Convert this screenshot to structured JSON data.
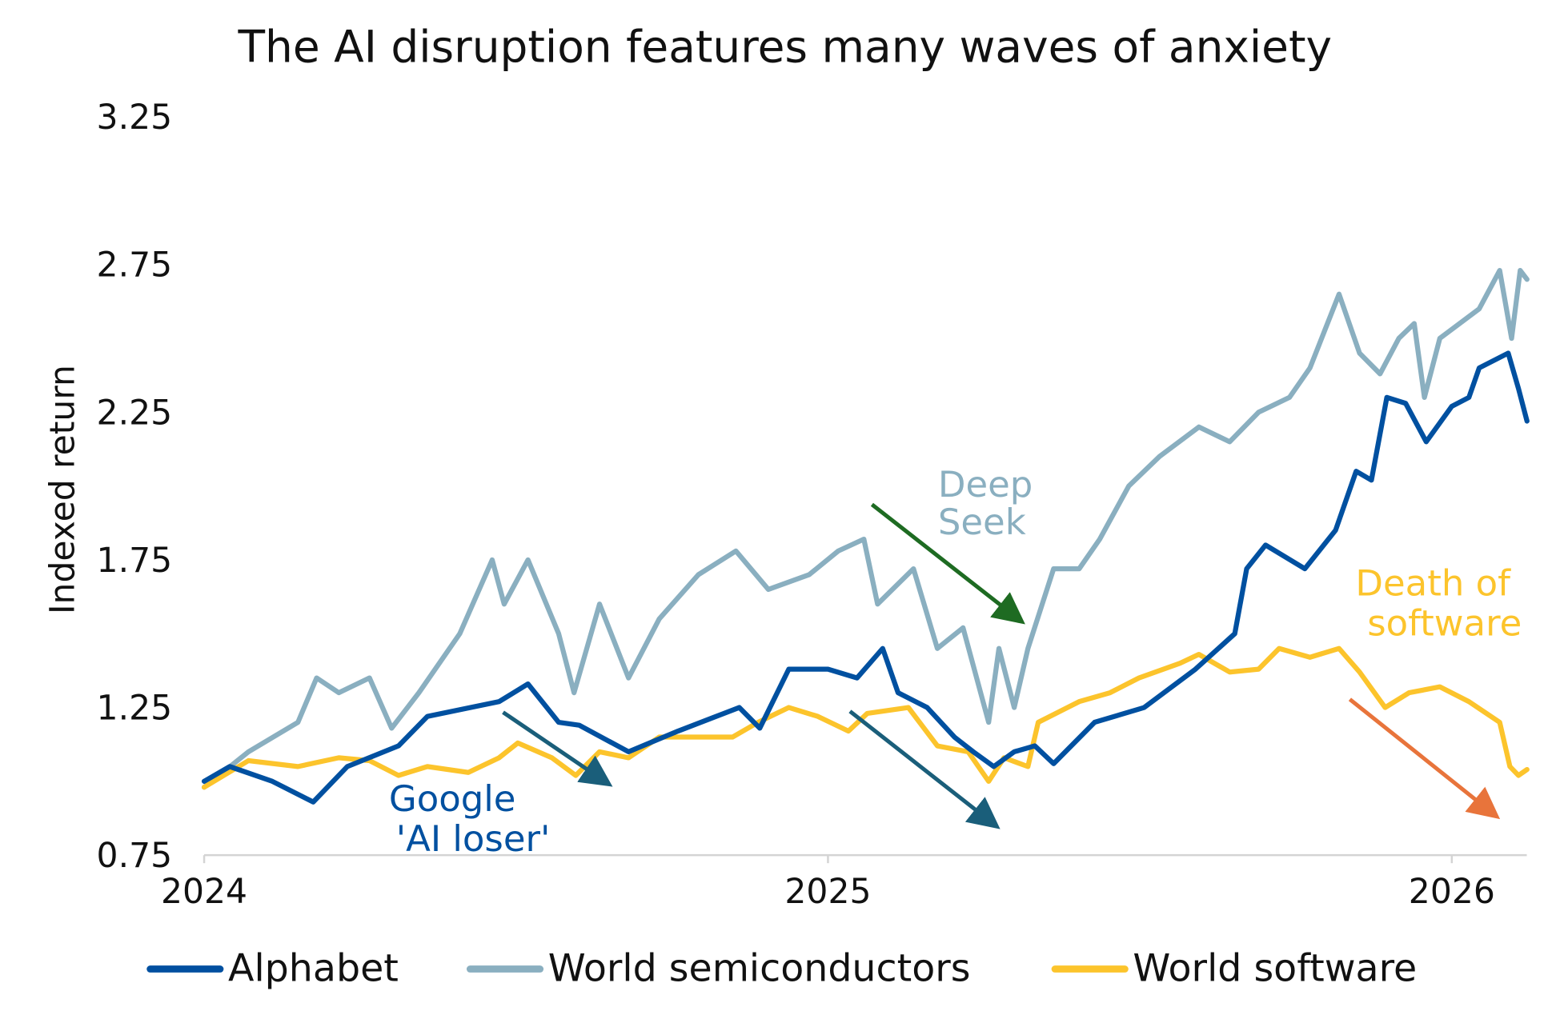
{
  "chart_data": {
    "type": "line",
    "title": "The AI disruption features many waves of anxiety",
    "xlabel": "",
    "ylabel": "Indexed return",
    "ylim": [
      0.75,
      3.25
    ],
    "yticks": [
      "0.75",
      "1.25",
      "1.75",
      "2.25",
      "2.75",
      "3.25"
    ],
    "xlim": [
      "2024-01-01",
      "2026-02-14"
    ],
    "xticks": [
      "2024",
      "2025",
      "2026"
    ],
    "grid": false,
    "legend": "bottom",
    "series": [
      {
        "name": "Alphabet",
        "color": "#0050a0",
        "points": [
          [
            "2024-01-01",
            1.0
          ],
          [
            "2024-01-16",
            1.05
          ],
          [
            "2024-02-10",
            1.0
          ],
          [
            "2024-03-05",
            0.93
          ],
          [
            "2024-03-25",
            1.05
          ],
          [
            "2024-04-24",
            1.12
          ],
          [
            "2024-05-11",
            1.22
          ],
          [
            "2024-06-22",
            1.27
          ],
          [
            "2024-07-09",
            1.33
          ],
          [
            "2024-07-27",
            1.2
          ],
          [
            "2024-08-08",
            1.19
          ],
          [
            "2024-09-06",
            1.1
          ],
          [
            "2024-10-05",
            1.17
          ],
          [
            "2024-11-10",
            1.25
          ],
          [
            "2024-11-22",
            1.18
          ],
          [
            "2024-12-09",
            1.38
          ],
          [
            "2025-01-01",
            1.38
          ],
          [
            "2025-01-18",
            1.35
          ],
          [
            "2025-02-02",
            1.45
          ],
          [
            "2025-02-11",
            1.3
          ],
          [
            "2025-02-28",
            1.25
          ],
          [
            "2025-03-16",
            1.15
          ],
          [
            "2025-03-27",
            1.1
          ],
          [
            "2025-04-08",
            1.05
          ],
          [
            "2025-04-20",
            1.1
          ],
          [
            "2025-05-02",
            1.12
          ],
          [
            "2025-05-13",
            1.06
          ],
          [
            "2025-06-06",
            1.2
          ],
          [
            "2025-07-05",
            1.25
          ],
          [
            "2025-08-04",
            1.38
          ],
          [
            "2025-08-27",
            1.5
          ],
          [
            "2025-09-03",
            1.72
          ],
          [
            "2025-09-14",
            1.8
          ],
          [
            "2025-10-07",
            1.72
          ],
          [
            "2025-10-25",
            1.85
          ],
          [
            "2025-11-06",
            2.05
          ],
          [
            "2025-11-15",
            2.02
          ],
          [
            "2025-11-24",
            2.3
          ],
          [
            "2025-12-05",
            2.28
          ],
          [
            "2025-12-17",
            2.15
          ],
          [
            "2026-01-01",
            2.27
          ],
          [
            "2026-01-11",
            2.3
          ],
          [
            "2026-01-17",
            2.4
          ],
          [
            "2026-02-03",
            2.45
          ],
          [
            "2026-02-09",
            2.33
          ],
          [
            "2026-02-14",
            2.22
          ]
        ]
      },
      {
        "name": "World semiconductors",
        "color": "#8aafc0",
        "points": [
          [
            "2024-01-01",
            0.98
          ],
          [
            "2024-01-27",
            1.1
          ],
          [
            "2024-02-25",
            1.2
          ],
          [
            "2024-03-07",
            1.35
          ],
          [
            "2024-03-20",
            1.3
          ],
          [
            "2024-04-07",
            1.35
          ],
          [
            "2024-04-20",
            1.18
          ],
          [
            "2024-05-06",
            1.3
          ],
          [
            "2024-05-30",
            1.5
          ],
          [
            "2024-06-18",
            1.75
          ],
          [
            "2024-06-25",
            1.6
          ],
          [
            "2024-07-09",
            1.75
          ],
          [
            "2024-07-27",
            1.5
          ],
          [
            "2024-08-05",
            1.3
          ],
          [
            "2024-08-20",
            1.6
          ],
          [
            "2024-09-06",
            1.35
          ],
          [
            "2024-09-24",
            1.55
          ],
          [
            "2024-10-17",
            1.7
          ],
          [
            "2024-11-08",
            1.78
          ],
          [
            "2024-11-27",
            1.65
          ],
          [
            "2024-12-21",
            1.7
          ],
          [
            "2025-01-07",
            1.78
          ],
          [
            "2025-01-22",
            1.82
          ],
          [
            "2025-01-30",
            1.6
          ],
          [
            "2025-02-20",
            1.72
          ],
          [
            "2025-03-06",
            1.45
          ],
          [
            "2025-03-21",
            1.52
          ],
          [
            "2025-04-05",
            1.2
          ],
          [
            "2025-04-11",
            1.45
          ],
          [
            "2025-04-20",
            1.25
          ],
          [
            "2025-04-28",
            1.45
          ],
          [
            "2025-05-13",
            1.72
          ],
          [
            "2025-05-28",
            1.72
          ],
          [
            "2025-06-09",
            1.82
          ],
          [
            "2025-06-26",
            2.0
          ],
          [
            "2025-07-14",
            2.1
          ],
          [
            "2025-08-06",
            2.2
          ],
          [
            "2025-08-24",
            2.15
          ],
          [
            "2025-09-10",
            2.25
          ],
          [
            "2025-09-28",
            2.3
          ],
          [
            "2025-10-10",
            2.4
          ],
          [
            "2025-10-27",
            2.65
          ],
          [
            "2025-11-08",
            2.45
          ],
          [
            "2025-11-20",
            2.38
          ],
          [
            "2025-12-01",
            2.5
          ],
          [
            "2025-12-10",
            2.55
          ],
          [
            "2025-12-16",
            2.3
          ],
          [
            "2025-12-25",
            2.5
          ],
          [
            "2026-01-17",
            2.6
          ],
          [
            "2026-01-29",
            2.73
          ],
          [
            "2026-02-05",
            2.5
          ],
          [
            "2026-02-10",
            2.73
          ],
          [
            "2026-02-14",
            2.7
          ]
        ]
      },
      {
        "name": "World software",
        "color": "#fcc42c",
        "points": [
          [
            "2024-01-01",
            0.98
          ],
          [
            "2024-01-27",
            1.07
          ],
          [
            "2024-02-25",
            1.05
          ],
          [
            "2024-03-20",
            1.08
          ],
          [
            "2024-04-07",
            1.07
          ],
          [
            "2024-04-24",
            1.02
          ],
          [
            "2024-05-11",
            1.05
          ],
          [
            "2024-06-04",
            1.03
          ],
          [
            "2024-06-22",
            1.08
          ],
          [
            "2024-07-03",
            1.13
          ],
          [
            "2024-07-23",
            1.08
          ],
          [
            "2024-08-06",
            1.02
          ],
          [
            "2024-08-20",
            1.1
          ],
          [
            "2024-09-06",
            1.08
          ],
          [
            "2024-09-24",
            1.15
          ],
          [
            "2024-10-17",
            1.15
          ],
          [
            "2024-11-06",
            1.15
          ],
          [
            "2024-11-21",
            1.2
          ],
          [
            "2024-12-09",
            1.25
          ],
          [
            "2024-12-26",
            1.22
          ],
          [
            "2025-01-13",
            1.17
          ],
          [
            "2025-01-24",
            1.23
          ],
          [
            "2025-02-17",
            1.25
          ],
          [
            "2025-03-06",
            1.12
          ],
          [
            "2025-03-24",
            1.1
          ],
          [
            "2025-04-05",
            1.0
          ],
          [
            "2025-04-14",
            1.08
          ],
          [
            "2025-04-28",
            1.05
          ],
          [
            "2025-05-04",
            1.2
          ],
          [
            "2025-05-28",
            1.27
          ],
          [
            "2025-06-15",
            1.3
          ],
          [
            "2025-07-02",
            1.35
          ],
          [
            "2025-07-26",
            1.4
          ],
          [
            "2025-08-06",
            1.43
          ],
          [
            "2025-08-24",
            1.37
          ],
          [
            "2025-09-10",
            1.38
          ],
          [
            "2025-09-22",
            1.45
          ],
          [
            "2025-10-10",
            1.42
          ],
          [
            "2025-10-27",
            1.45
          ],
          [
            "2025-11-08",
            1.37
          ],
          [
            "2025-11-23",
            1.25
          ],
          [
            "2025-12-07",
            1.3
          ],
          [
            "2025-12-25",
            1.32
          ],
          [
            "2026-01-11",
            1.27
          ],
          [
            "2026-01-29",
            1.2
          ],
          [
            "2026-02-04",
            1.05
          ],
          [
            "2026-02-09",
            1.02
          ],
          [
            "2026-02-14",
            1.04
          ]
        ]
      }
    ],
    "annotations": [
      {
        "text": [
          "Google",
          "'AI loser'"
        ],
        "color": "#0050a0"
      },
      {
        "text": [
          "Deep",
          "Seek"
        ],
        "color": "#8aafc0"
      },
      {
        "text": [
          "Death of",
          "software"
        ],
        "color": "#fcc42c"
      }
    ],
    "arrow_colors": {
      "alphabet": "#1a5e7a",
      "deepseek": "#1e6b22",
      "software": "#e8743b"
    }
  }
}
